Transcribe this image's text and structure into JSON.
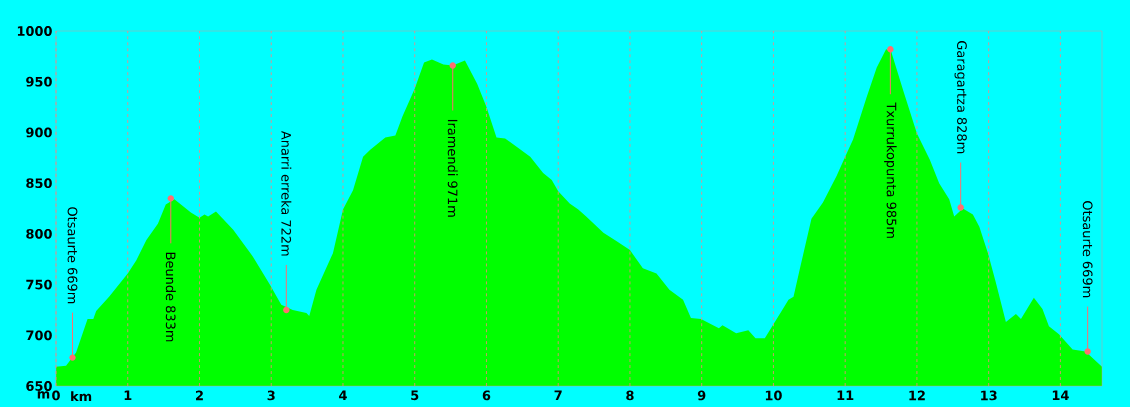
{
  "chart_data": {
    "type": "area",
    "xlabel": "km",
    "ylabel": "m",
    "color": "#00ff00",
    "x": [
      0,
      0.14,
      0.28,
      0.44,
      0.52,
      0.56,
      0.74,
      1.0,
      1.12,
      1.26,
      1.42,
      1.53,
      1.65,
      1.88,
      2.0,
      2.07,
      2.12,
      2.23,
      2.47,
      2.74,
      2.98,
      3.14,
      3.3,
      3.49,
      3.53,
      3.63,
      3.86,
      4.0,
      4.14,
      4.28,
      4.38,
      4.59,
      4.73,
      4.83,
      5.0,
      5.13,
      5.24,
      5.4,
      5.53,
      5.7,
      5.87,
      6.0,
      6.14,
      6.26,
      6.42,
      6.61,
      6.79,
      6.91,
      7.0,
      7.16,
      7.28,
      7.39,
      7.63,
      7.81,
      8.0,
      8.18,
      8.37,
      8.55,
      8.74,
      8.85,
      8.99,
      9.24,
      9.29,
      9.48,
      9.65,
      9.75,
      9.88,
      10.0,
      10.14,
      10.21,
      10.28,
      10.37,
      10.53,
      10.69,
      10.88,
      11.0,
      11.11,
      11.3,
      11.44,
      11.57,
      11.64,
      11.81,
      12.0,
      12.18,
      12.31,
      12.45,
      12.52,
      12.64,
      12.78,
      12.87,
      12.99,
      13.1,
      13.24,
      13.38,
      13.45,
      13.63,
      13.75,
      13.84,
      13.98,
      14.17,
      14.35,
      14.58
    ],
    "values": [
      669,
      670,
      683,
      716,
      716,
      724,
      738,
      761,
      774,
      794,
      810,
      829,
      834,
      821,
      816,
      819,
      817,
      822,
      804,
      778,
      750,
      730,
      725,
      722,
      719,
      745,
      781,
      824,
      843,
      876,
      883,
      895,
      897,
      916,
      943,
      969,
      972,
      967,
      966,
      971,
      948,
      925,
      895,
      894,
      886,
      876,
      860,
      853,
      842,
      830,
      824,
      817,
      801,
      793,
      784,
      766,
      761,
      745,
      735,
      717,
      716,
      707,
      710,
      702,
      705,
      697,
      697,
      711,
      727,
      735,
      738,
      766,
      815,
      831,
      857,
      876,
      893,
      935,
      964,
      982,
      980,
      941,
      899,
      873,
      850,
      834,
      817,
      825,
      819,
      807,
      781,
      752,
      713,
      721,
      716,
      737,
      726,
      709,
      701,
      686,
      684,
      669
    ],
    "xlim": [
      0,
      14.58
    ],
    "ylim": [
      650,
      1000
    ],
    "xticks": [
      0,
      1,
      2,
      3,
      4,
      5,
      6,
      7,
      8,
      9,
      10,
      11,
      12,
      13,
      14
    ],
    "yticks": [
      650,
      700,
      750,
      800,
      850,
      900,
      950,
      1000
    ],
    "grid": "x",
    "annotations": [
      {
        "text": "Otsaurte 669m",
        "x": 0.23,
        "y": 678
      },
      {
        "text": "Beunde 833m",
        "x": 1.6,
        "y": 835
      },
      {
        "text": "Anarri erreka 722m",
        "x": 3.21,
        "y": 725
      },
      {
        "text": "Iramendi 971m",
        "x": 5.53,
        "y": 966
      },
      {
        "text": "Txurrukopunta 985m",
        "x": 11.63,
        "y": 982
      },
      {
        "text": "Garagartza 828m",
        "x": 12.61,
        "y": 826
      },
      {
        "text": "Otsaurte 669m",
        "x": 14.38,
        "y": 684
      }
    ]
  }
}
